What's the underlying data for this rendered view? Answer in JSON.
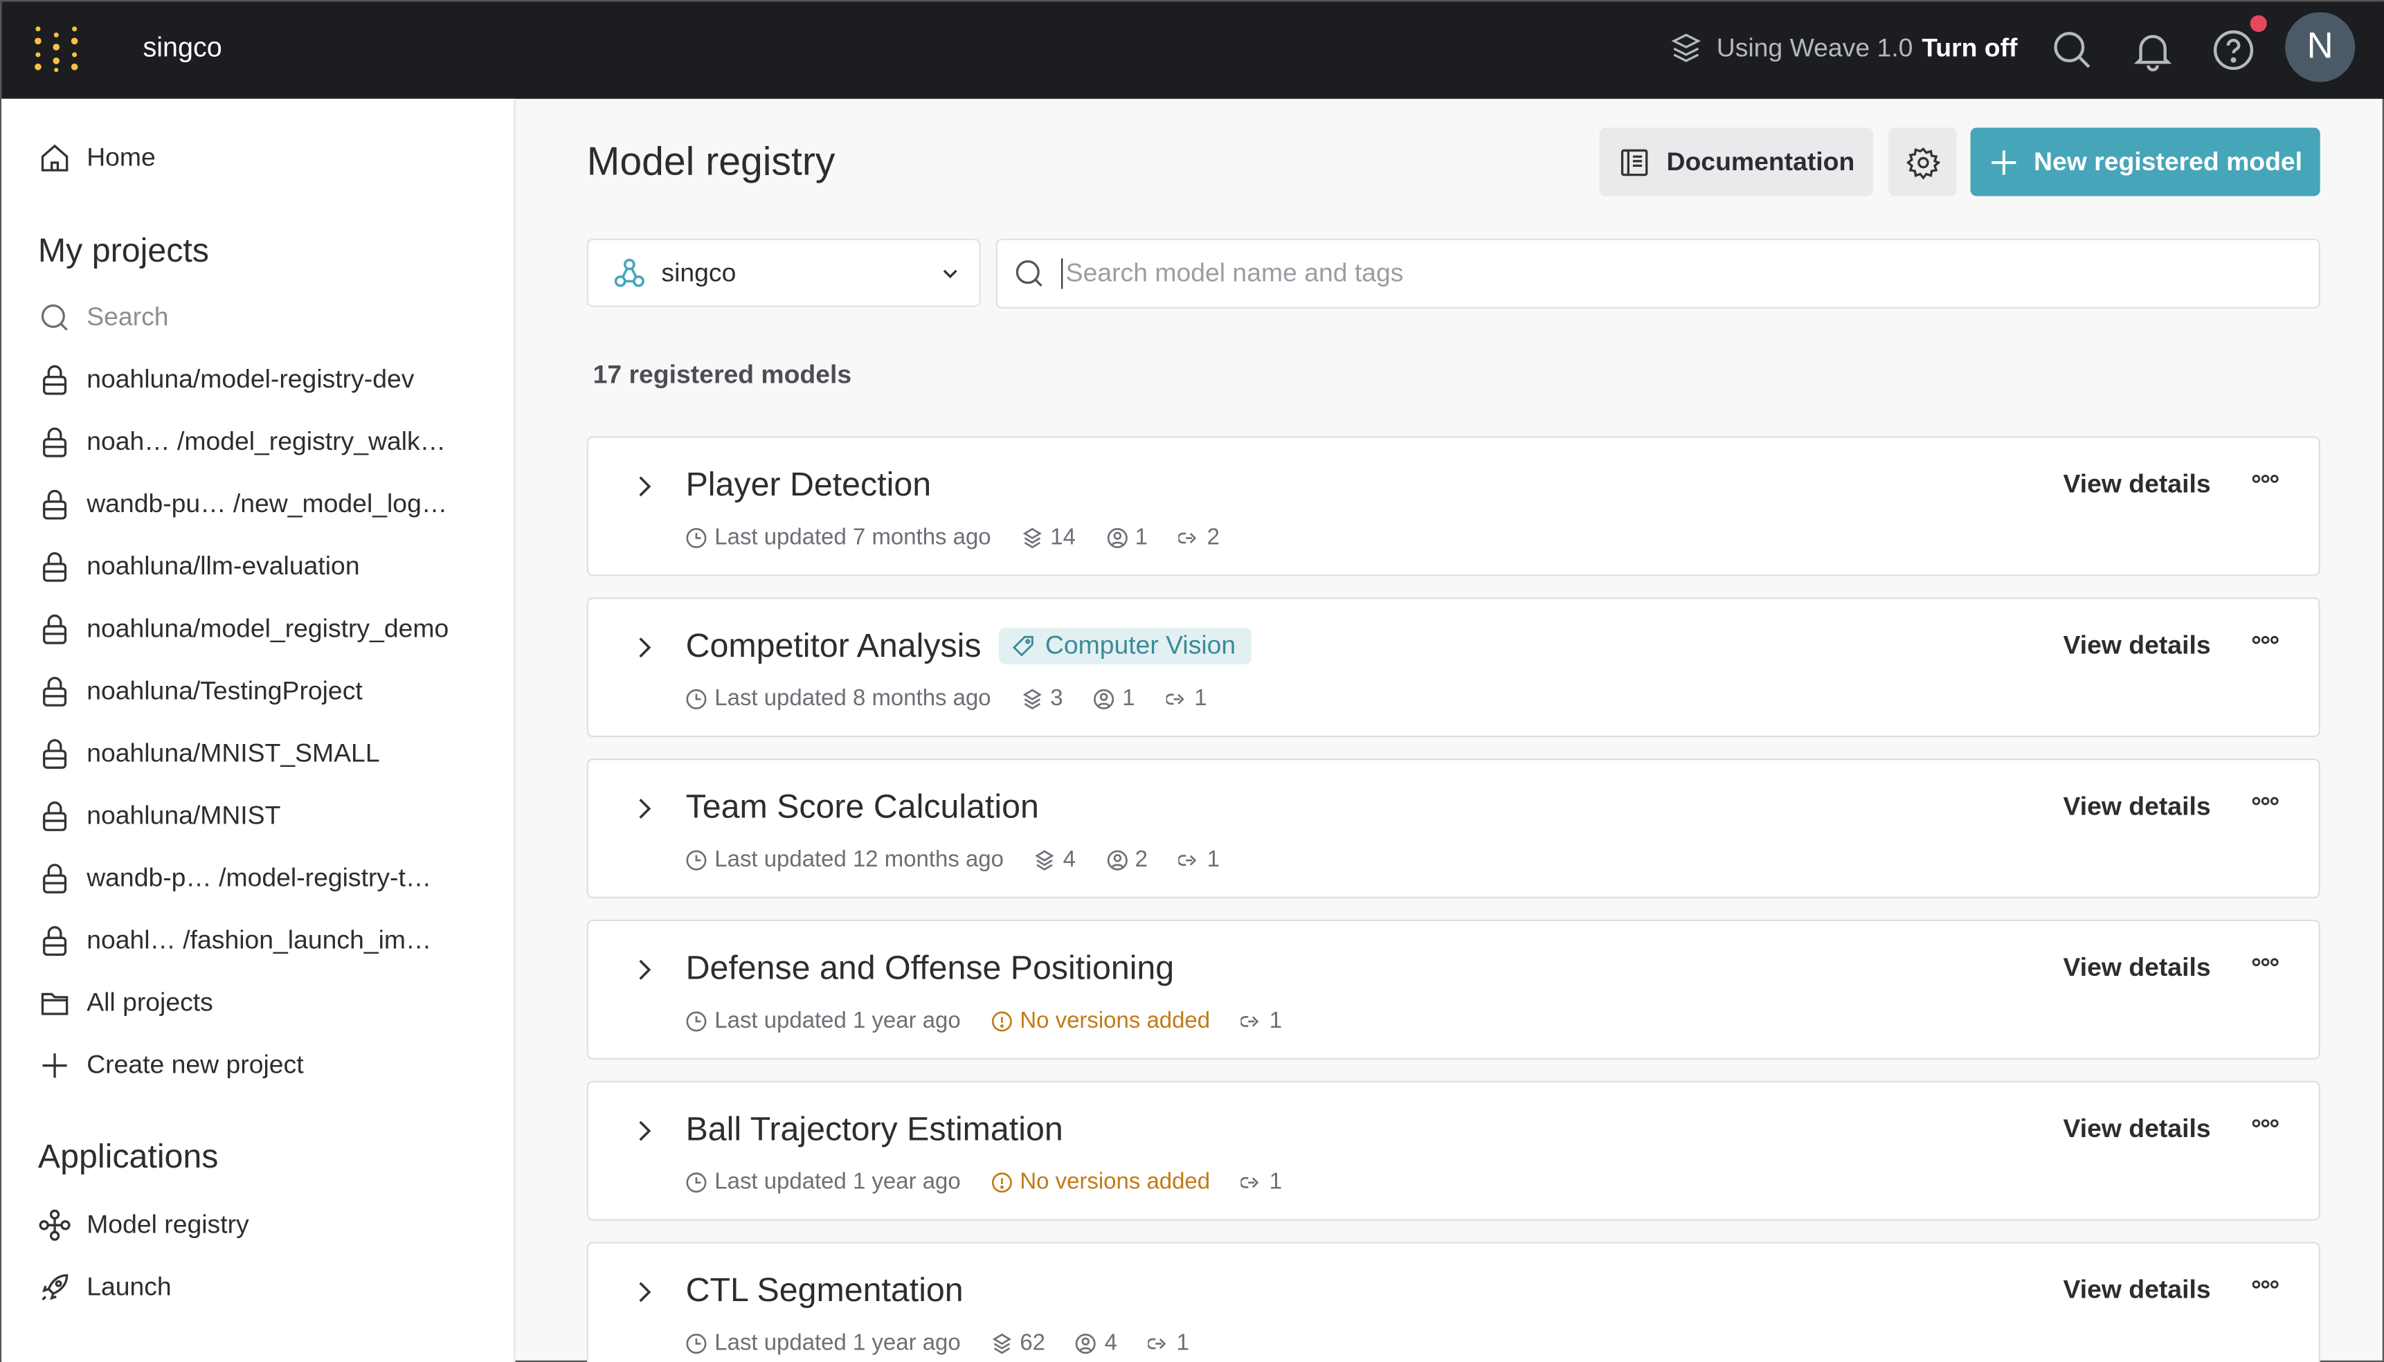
{
  "topbar": {
    "org": "singco",
    "weave_text": "Using Weave 1.0",
    "turn_off": "Turn off",
    "avatar_initial": "N",
    "notification_dot_color": "#e5485b"
  },
  "sidebar": {
    "home": "Home",
    "my_projects": "My projects",
    "search_placeholder": "Search",
    "projects": [
      "noahluna/model-registry-dev",
      "noah… /model_registry_walk…",
      "wandb-pu… /new_model_log…",
      "noahluna/llm-evaluation",
      "noahluna/model_registry_demo",
      "noahluna/TestingProject",
      "noahluna/MNIST_SMALL",
      "noahluna/MNIST",
      "wandb-p… /model-registry-t…",
      "noahl… /fashion_launch_im…"
    ],
    "all_projects": "All projects",
    "create_project": "Create new project",
    "applications": "Applications",
    "apps": [
      "Model registry",
      "Launch"
    ]
  },
  "main": {
    "title": "Model registry",
    "documentation": "Documentation",
    "new_model": "New registered model",
    "entity": "singco",
    "search_placeholder": "Search model name and tags",
    "count": "17 registered models",
    "view_details": "View details",
    "accent_color": "#47a5b9",
    "models": [
      {
        "name": "Player Detection",
        "tag": null,
        "updated": "Last updated 7 months ago",
        "versions": "14",
        "members": "1",
        "links": "2"
      },
      {
        "name": "Competitor Analysis",
        "tag": "Computer Vision",
        "updated": "Last updated 8 months ago",
        "versions": "3",
        "members": "1",
        "links": "1"
      },
      {
        "name": "Team Score Calculation",
        "tag": null,
        "updated": "Last updated 12 months ago",
        "versions": "4",
        "members": "2",
        "links": "1"
      },
      {
        "name": "Defense and Offense Positioning",
        "tag": null,
        "updated": "Last updated 1 year ago",
        "warning": "No versions added",
        "links": "1"
      },
      {
        "name": "Ball Trajectory Estimation",
        "tag": null,
        "updated": "Last updated 1 year ago",
        "warning": "No versions added",
        "links": "1"
      },
      {
        "name": "CTL Segmentation",
        "tag": null,
        "updated": "Last updated 1 year ago",
        "versions": "62",
        "members": "4",
        "links": "1"
      }
    ]
  }
}
